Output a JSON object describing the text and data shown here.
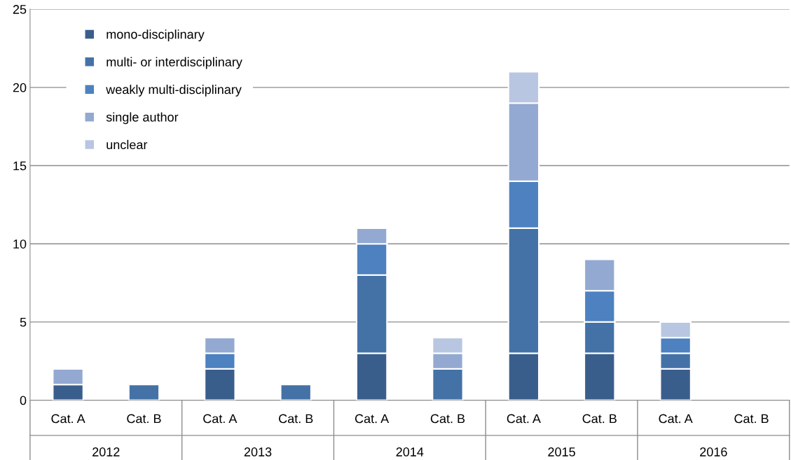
{
  "chart_data": {
    "type": "bar",
    "stacked": true,
    "categories": [
      "Cat. A",
      "Cat. B",
      "Cat. A",
      "Cat. B",
      "Cat. A",
      "Cat. B",
      "Cat. A",
      "Cat. B",
      "Cat. A",
      "Cat. B"
    ],
    "annotations": [
      "2012",
      "2013",
      "2014",
      "2015",
      "2016"
    ],
    "series": [
      {
        "name": "mono-disciplinary",
        "color": "#3a5e8c",
        "values": [
          1,
          null,
          2,
          null,
          3,
          null,
          3,
          3,
          2,
          null
        ]
      },
      {
        "name": "multi- or interdisciplinary",
        "color": "#4472a7",
        "values": [
          null,
          1,
          null,
          1,
          5,
          2,
          8,
          2,
          1,
          null
        ]
      },
      {
        "name": "weakly multi-disciplinary",
        "color": "#4d81bf",
        "values": [
          null,
          null,
          1,
          null,
          2,
          null,
          3,
          2,
          1,
          null
        ]
      },
      {
        "name": "single author",
        "color": "#93a9d1",
        "values": [
          1,
          null,
          1,
          null,
          1,
          1,
          5,
          2,
          null,
          null
        ]
      },
      {
        "name": "unclear",
        "color": "#b9c6e1",
        "values": [
          null,
          null,
          null,
          null,
          null,
          1,
          2,
          null,
          1,
          null
        ]
      }
    ],
    "ylim": [
      0,
      25
    ],
    "yticks": [
      0,
      5,
      10,
      15,
      20,
      25
    ],
    "grid": "y",
    "legend": "top left"
  }
}
